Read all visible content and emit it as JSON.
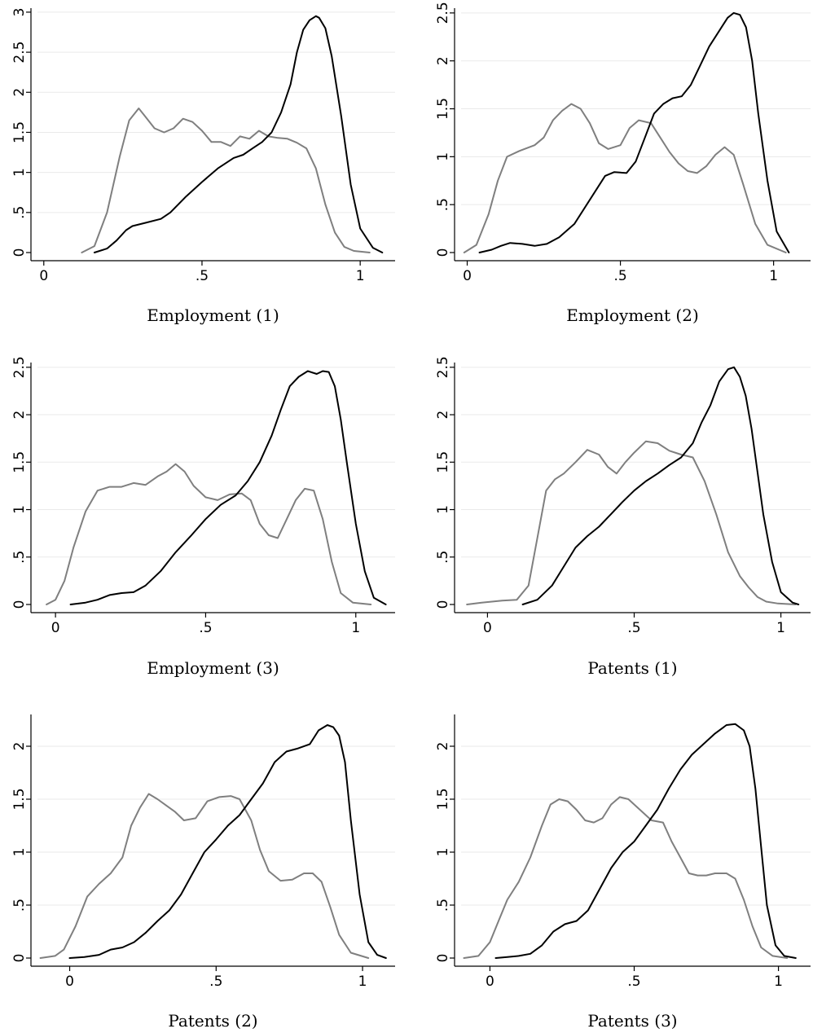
{
  "colors": {
    "black_series": "#000000",
    "gray_series": "#7f7f7f",
    "grid": "#eaeaea"
  },
  "chart_data": [
    {
      "type": "line",
      "xlabel": "Employment (1)",
      "xticks": [
        0,
        0.5,
        1
      ],
      "xtick_labels": [
        "0",
        ".5",
        "1"
      ],
      "yticks": [
        0,
        0.5,
        1,
        1.5,
        2,
        2.5,
        3
      ],
      "ytick_labels": [
        "0",
        ".5",
        "1",
        "1.5",
        "2",
        "2.5",
        "3"
      ],
      "xlim": [
        -0.02,
        1.1
      ],
      "ylim": [
        0,
        3.05
      ],
      "grid": true,
      "series": [
        {
          "color": "gray",
          "x": [
            0.12,
            0.16,
            0.2,
            0.24,
            0.27,
            0.3,
            0.32,
            0.35,
            0.38,
            0.41,
            0.44,
            0.47,
            0.5,
            0.53,
            0.56,
            0.59,
            0.62,
            0.65,
            0.68,
            0.71,
            0.74,
            0.77,
            0.8,
            0.83,
            0.86,
            0.89,
            0.92,
            0.95,
            0.98,
            1.03
          ],
          "y": [
            0.0,
            0.08,
            0.5,
            1.2,
            1.65,
            1.8,
            1.7,
            1.55,
            1.5,
            1.55,
            1.67,
            1.63,
            1.52,
            1.38,
            1.38,
            1.33,
            1.45,
            1.42,
            1.52,
            1.45,
            1.43,
            1.42,
            1.37,
            1.3,
            1.05,
            0.6,
            0.25,
            0.07,
            0.02,
            0.0
          ]
        },
        {
          "color": "black",
          "x": [
            0.16,
            0.2,
            0.23,
            0.26,
            0.28,
            0.32,
            0.37,
            0.4,
            0.45,
            0.5,
            0.55,
            0.6,
            0.63,
            0.66,
            0.69,
            0.72,
            0.75,
            0.78,
            0.8,
            0.82,
            0.84,
            0.86,
            0.87,
            0.89,
            0.91,
            0.94,
            0.97,
            1.0,
            1.04,
            1.07
          ],
          "y": [
            0.0,
            0.05,
            0.15,
            0.28,
            0.33,
            0.37,
            0.42,
            0.5,
            0.7,
            0.88,
            1.05,
            1.18,
            1.22,
            1.3,
            1.38,
            1.5,
            1.75,
            2.1,
            2.5,
            2.78,
            2.9,
            2.95,
            2.93,
            2.8,
            2.45,
            1.7,
            0.85,
            0.3,
            0.06,
            0.0
          ]
        }
      ]
    },
    {
      "type": "line",
      "xlabel": "Employment (2)",
      "xticks": [
        0,
        0.5,
        1
      ],
      "xtick_labels": [
        "0",
        ".5",
        "1"
      ],
      "yticks": [
        0,
        0.5,
        1,
        1.5,
        2,
        2.5
      ],
      "ytick_labels": [
        "0",
        ".5",
        "1",
        "1.5",
        "2",
        "2.5"
      ],
      "xlim": [
        -0.02,
        1.11
      ],
      "ylim": [
        0,
        2.55
      ],
      "grid": true,
      "series": [
        {
          "color": "gray",
          "x": [
            -0.01,
            0.03,
            0.07,
            0.1,
            0.13,
            0.17,
            0.22,
            0.25,
            0.28,
            0.31,
            0.34,
            0.37,
            0.4,
            0.43,
            0.46,
            0.5,
            0.53,
            0.56,
            0.6,
            0.63,
            0.66,
            0.69,
            0.72,
            0.75,
            0.78,
            0.81,
            0.84,
            0.87,
            0.9,
            0.94,
            0.98,
            1.04
          ],
          "y": [
            0.0,
            0.08,
            0.4,
            0.75,
            1.0,
            1.06,
            1.12,
            1.2,
            1.38,
            1.48,
            1.55,
            1.5,
            1.35,
            1.14,
            1.08,
            1.12,
            1.3,
            1.38,
            1.35,
            1.2,
            1.05,
            0.93,
            0.85,
            0.83,
            0.9,
            1.02,
            1.1,
            1.02,
            0.72,
            0.3,
            0.08,
            0.0
          ]
        },
        {
          "color": "black",
          "x": [
            0.04,
            0.08,
            0.11,
            0.14,
            0.18,
            0.22,
            0.26,
            0.3,
            0.35,
            0.4,
            0.45,
            0.48,
            0.52,
            0.55,
            0.58,
            0.61,
            0.64,
            0.67,
            0.7,
            0.73,
            0.76,
            0.79,
            0.82,
            0.85,
            0.87,
            0.89,
            0.91,
            0.93,
            0.95,
            0.98,
            1.01,
            1.05
          ],
          "y": [
            0.0,
            0.03,
            0.07,
            0.1,
            0.09,
            0.07,
            0.09,
            0.16,
            0.3,
            0.55,
            0.8,
            0.84,
            0.83,
            0.95,
            1.2,
            1.45,
            1.55,
            1.61,
            1.63,
            1.75,
            1.95,
            2.15,
            2.3,
            2.45,
            2.5,
            2.48,
            2.35,
            2.0,
            1.45,
            0.75,
            0.22,
            0.0
          ]
        }
      ]
    },
    {
      "type": "line",
      "xlabel": "Employment (3)",
      "xticks": [
        0,
        0.5,
        1
      ],
      "xtick_labels": [
        "0",
        ".5",
        "1"
      ],
      "yticks": [
        0,
        0.5,
        1,
        1.5,
        2,
        2.5
      ],
      "ytick_labels": [
        "0",
        ".5",
        "1",
        "1.5",
        "2",
        "2.5"
      ],
      "xlim": [
        -0.06,
        1.12
      ],
      "ylim": [
        0,
        2.55
      ],
      "grid": true,
      "series": [
        {
          "color": "gray",
          "x": [
            -0.03,
            0.0,
            0.03,
            0.06,
            0.1,
            0.14,
            0.18,
            0.22,
            0.26,
            0.3,
            0.34,
            0.37,
            0.4,
            0.43,
            0.46,
            0.5,
            0.54,
            0.58,
            0.62,
            0.65,
            0.68,
            0.71,
            0.74,
            0.77,
            0.8,
            0.83,
            0.86,
            0.89,
            0.92,
            0.95,
            0.99,
            1.05
          ],
          "y": [
            0.0,
            0.05,
            0.25,
            0.6,
            0.98,
            1.2,
            1.24,
            1.24,
            1.28,
            1.26,
            1.35,
            1.4,
            1.48,
            1.4,
            1.25,
            1.13,
            1.1,
            1.16,
            1.17,
            1.1,
            0.85,
            0.73,
            0.7,
            0.9,
            1.1,
            1.22,
            1.2,
            0.9,
            0.45,
            0.12,
            0.02,
            0.0
          ]
        },
        {
          "color": "black",
          "x": [
            0.05,
            0.1,
            0.14,
            0.18,
            0.22,
            0.26,
            0.3,
            0.35,
            0.4,
            0.45,
            0.5,
            0.55,
            0.6,
            0.64,
            0.68,
            0.72,
            0.75,
            0.78,
            0.81,
            0.84,
            0.87,
            0.89,
            0.91,
            0.93,
            0.95,
            0.97,
            1.0,
            1.03,
            1.06,
            1.1
          ],
          "y": [
            0.0,
            0.02,
            0.05,
            0.1,
            0.12,
            0.13,
            0.2,
            0.35,
            0.55,
            0.72,
            0.9,
            1.05,
            1.15,
            1.3,
            1.5,
            1.78,
            2.05,
            2.3,
            2.4,
            2.46,
            2.43,
            2.46,
            2.45,
            2.3,
            1.95,
            1.5,
            0.85,
            0.35,
            0.07,
            0.0
          ]
        }
      ]
    },
    {
      "type": "line",
      "xlabel": "Patents (1)",
      "xticks": [
        0,
        0.5,
        1
      ],
      "xtick_labels": [
        "0",
        ".5",
        "1"
      ],
      "yticks": [
        0,
        0.5,
        1,
        1.5,
        2,
        2.5
      ],
      "ytick_labels": [
        "0",
        ".5",
        "1",
        "1.5",
        "2",
        "2.5"
      ],
      "xlim": [
        -0.09,
        1.09
      ],
      "ylim": [
        0,
        2.55
      ],
      "grid": true,
      "series": [
        {
          "color": "gray",
          "x": [
            -0.07,
            -0.02,
            0.05,
            0.1,
            0.14,
            0.17,
            0.2,
            0.23,
            0.26,
            0.3,
            0.34,
            0.38,
            0.41,
            0.44,
            0.47,
            0.5,
            0.54,
            0.58,
            0.62,
            0.66,
            0.7,
            0.74,
            0.78,
            0.82,
            0.86,
            0.89,
            0.92,
            0.95,
            0.99,
            1.05
          ],
          "y": [
            0.0,
            0.02,
            0.04,
            0.05,
            0.2,
            0.7,
            1.2,
            1.32,
            1.38,
            1.5,
            1.63,
            1.58,
            1.45,
            1.38,
            1.5,
            1.6,
            1.72,
            1.7,
            1.62,
            1.58,
            1.55,
            1.3,
            0.95,
            0.55,
            0.3,
            0.18,
            0.08,
            0.03,
            0.01,
            0.0
          ]
        },
        {
          "color": "black",
          "x": [
            0.12,
            0.17,
            0.22,
            0.26,
            0.3,
            0.34,
            0.38,
            0.42,
            0.46,
            0.5,
            0.54,
            0.58,
            0.62,
            0.66,
            0.7,
            0.73,
            0.76,
            0.79,
            0.82,
            0.84,
            0.86,
            0.88,
            0.9,
            0.92,
            0.94,
            0.97,
            1.0,
            1.04,
            1.06
          ],
          "y": [
            0.0,
            0.05,
            0.2,
            0.4,
            0.6,
            0.72,
            0.82,
            0.95,
            1.08,
            1.2,
            1.3,
            1.38,
            1.47,
            1.55,
            1.7,
            1.92,
            2.1,
            2.35,
            2.48,
            2.5,
            2.4,
            2.2,
            1.85,
            1.4,
            0.95,
            0.45,
            0.13,
            0.02,
            0.0
          ]
        }
      ]
    },
    {
      "type": "line",
      "xlabel": "Patents (2)",
      "xticks": [
        0,
        0.5,
        1
      ],
      "xtick_labels": [
        "0",
        ".5",
        "1"
      ],
      "yticks": [
        0,
        0.5,
        1,
        1.5,
        2
      ],
      "ytick_labels": [
        "0",
        ".5",
        "1",
        "1.5",
        "2"
      ],
      "xlim": [
        -0.11,
        1.1
      ],
      "ylim": [
        0,
        2.3
      ],
      "grid": true,
      "series": [
        {
          "color": "gray",
          "x": [
            -0.1,
            -0.05,
            -0.02,
            0.02,
            0.06,
            0.1,
            0.14,
            0.18,
            0.21,
            0.24,
            0.27,
            0.3,
            0.33,
            0.36,
            0.39,
            0.43,
            0.47,
            0.51,
            0.55,
            0.58,
            0.62,
            0.65,
            0.68,
            0.72,
            0.76,
            0.8,
            0.83,
            0.86,
            0.89,
            0.92,
            0.96,
            1.02
          ],
          "y": [
            0.0,
            0.02,
            0.08,
            0.3,
            0.58,
            0.7,
            0.8,
            0.95,
            1.25,
            1.42,
            1.55,
            1.5,
            1.44,
            1.38,
            1.3,
            1.32,
            1.48,
            1.52,
            1.53,
            1.5,
            1.3,
            1.02,
            0.82,
            0.73,
            0.74,
            0.8,
            0.8,
            0.72,
            0.48,
            0.22,
            0.05,
            0.0
          ]
        },
        {
          "color": "black",
          "x": [
            0.0,
            0.05,
            0.1,
            0.14,
            0.18,
            0.22,
            0.26,
            0.3,
            0.34,
            0.38,
            0.42,
            0.46,
            0.5,
            0.54,
            0.58,
            0.62,
            0.66,
            0.7,
            0.74,
            0.78,
            0.82,
            0.85,
            0.88,
            0.9,
            0.92,
            0.94,
            0.96,
            0.99,
            1.02,
            1.05,
            1.08
          ],
          "y": [
            0.0,
            0.01,
            0.03,
            0.08,
            0.1,
            0.15,
            0.24,
            0.35,
            0.45,
            0.6,
            0.8,
            1.0,
            1.12,
            1.25,
            1.35,
            1.5,
            1.65,
            1.85,
            1.95,
            1.98,
            2.02,
            2.15,
            2.2,
            2.18,
            2.1,
            1.85,
            1.3,
            0.6,
            0.15,
            0.03,
            0.0
          ]
        }
      ]
    },
    {
      "type": "line",
      "xlabel": "Patents (3)",
      "xticks": [
        0,
        0.5,
        1
      ],
      "xtick_labels": [
        "0",
        ".5",
        "1"
      ],
      "yticks": [
        0,
        0.5,
        1,
        1.5,
        2
      ],
      "ytick_labels": [
        "0",
        ".5",
        "1",
        "1.5",
        "2"
      ],
      "xlim": [
        -0.1,
        1.1
      ],
      "ylim": [
        0,
        2.3
      ],
      "grid": true,
      "series": [
        {
          "color": "gray",
          "x": [
            -0.09,
            -0.04,
            0.0,
            0.03,
            0.06,
            0.1,
            0.14,
            0.18,
            0.21,
            0.24,
            0.27,
            0.3,
            0.33,
            0.36,
            0.39,
            0.42,
            0.45,
            0.48,
            0.52,
            0.56,
            0.6,
            0.63,
            0.66,
            0.69,
            0.72,
            0.75,
            0.78,
            0.82,
            0.85,
            0.88,
            0.91,
            0.94,
            0.98,
            1.03
          ],
          "y": [
            0.0,
            0.02,
            0.15,
            0.35,
            0.55,
            0.72,
            0.95,
            1.25,
            1.45,
            1.5,
            1.48,
            1.4,
            1.3,
            1.28,
            1.32,
            1.45,
            1.52,
            1.5,
            1.4,
            1.3,
            1.28,
            1.1,
            0.95,
            0.8,
            0.78,
            0.78,
            0.8,
            0.8,
            0.75,
            0.55,
            0.3,
            0.1,
            0.02,
            0.0
          ]
        },
        {
          "color": "black",
          "x": [
            0.02,
            0.06,
            0.1,
            0.14,
            0.18,
            0.22,
            0.26,
            0.3,
            0.34,
            0.38,
            0.42,
            0.46,
            0.5,
            0.54,
            0.58,
            0.62,
            0.66,
            0.7,
            0.74,
            0.78,
            0.82,
            0.85,
            0.88,
            0.9,
            0.92,
            0.94,
            0.96,
            0.99,
            1.02,
            1.06
          ],
          "y": [
            0.0,
            0.01,
            0.02,
            0.04,
            0.12,
            0.25,
            0.32,
            0.35,
            0.45,
            0.65,
            0.85,
            1.0,
            1.1,
            1.25,
            1.4,
            1.6,
            1.78,
            1.92,
            2.02,
            2.12,
            2.2,
            2.21,
            2.15,
            2.0,
            1.6,
            1.05,
            0.5,
            0.12,
            0.02,
            0.0
          ]
        }
      ]
    }
  ]
}
